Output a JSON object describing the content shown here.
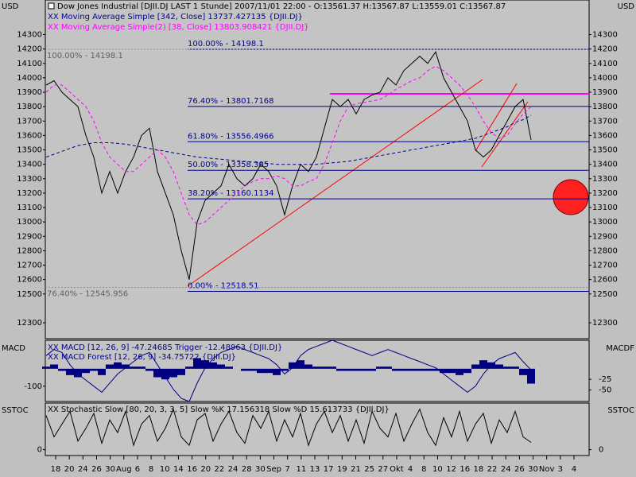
{
  "chart_data": [
    {
      "type": "line",
      "title": "Dow Jones Industrial [DJII.DJ LAST 1 Stunde] 2007/11/01 22:00 - O:13561.37 H:13567.87 L:13559.01 C:13567.87",
      "unit_label": "USD",
      "ylim": [
        12190,
        14540
      ],
      "yticks": [
        12300,
        12500,
        12600,
        12700,
        12800,
        12900,
        13000,
        13100,
        13200,
        13300,
        13400,
        13500,
        13600,
        13700,
        13800,
        13900,
        14000,
        14100,
        14200,
        14300
      ],
      "color": "#000000",
      "values": [
        13950,
        13980,
        13900,
        13850,
        13800,
        13600,
        13450,
        13200,
        13350,
        13200,
        13350,
        13450,
        13600,
        13650,
        13350,
        13200,
        13050,
        12800,
        12600,
        13000,
        13150,
        13200,
        13250,
        13400,
        13300,
        13250,
        13300,
        13400,
        13350,
        13250,
        13050,
        13250,
        13400,
        13350,
        13450,
        13650,
        13850,
        13800,
        13850,
        13750,
        13850,
        13880,
        13900,
        14000,
        13950,
        14050,
        14100,
        14150,
        14100,
        14180,
        14000,
        13900,
        13800,
        13700,
        13500,
        13450,
        13500,
        13600,
        13700,
        13800,
        13850,
        13570
      ],
      "series": [
        {
          "name": "XX Moving Average Simple [342, Close] 13737.427135 {DJII.DJ}",
          "color": "#00008b",
          "style": "dashed",
          "values": [
            13450,
            13470,
            13490,
            13510,
            13530,
            13540,
            13550,
            13550,
            13550,
            13545,
            13540,
            13530,
            13520,
            13510,
            13500,
            13490,
            13480,
            13470,
            13460,
            13450,
            13445,
            13440,
            13435,
            13430,
            13425,
            13420,
            13415,
            13410,
            13405,
            13400,
            13400,
            13400,
            13400,
            13400,
            13400,
            13405,
            13410,
            13415,
            13420,
            13430,
            13440,
            13450,
            13460,
            13470,
            13480,
            13490,
            13500,
            13510,
            13520,
            13530,
            13540,
            13550,
            13560,
            13570,
            13580,
            13600,
            13620,
            13640,
            13660,
            13690,
            13710,
            13740
          ]
        },
        {
          "name": "XX Moving Average Simple(2) [38, Close] 13803.908421 {DJII.DJ}",
          "color": "#ff00ff",
          "style": "dashed",
          "values": [
            13900,
            13950,
            13950,
            13900,
            13850,
            13800,
            13700,
            13550,
            13450,
            13400,
            13350,
            13350,
            13400,
            13450,
            13500,
            13450,
            13350,
            13200,
            13050,
            12980,
            13000,
            13050,
            13100,
            13150,
            13200,
            13250,
            13280,
            13300,
            13300,
            13320,
            13300,
            13250,
            13250,
            13280,
            13300,
            13400,
            13550,
            13700,
            13800,
            13820,
            13830,
            13840,
            13850,
            13880,
            13920,
            13950,
            13980,
            14000,
            14050,
            14080,
            14050,
            14000,
            13950,
            13880,
            13800,
            13700,
            13620,
            13580,
            13600,
            13680,
            13750,
            13800
          ]
        }
      ],
      "fib_levels": [
        {
          "value": 14198.1,
          "label": "100.00% - 14198.1"
        },
        {
          "value": 13801.7168,
          "label": "76.40% - 13801.7168"
        },
        {
          "value": 13556.4966,
          "label": "61.80% - 13556.4966"
        },
        {
          "value": 13358.305,
          "label": "50.00% - 13358.305"
        },
        {
          "value": 13160.1134,
          "label": "38.20% - 13160.1134"
        },
        {
          "value": 12518.51,
          "label": "0.00% - 12518.51"
        }
      ],
      "fib_left_levels": [
        {
          "value": 14198.1,
          "label": "100.00% - 14198.1"
        },
        {
          "value": 12545.956,
          "label": "76.40% - 12545.956"
        }
      ]
    },
    {
      "type": "macd",
      "label": "MACD",
      "label_right": "MACDF",
      "ylim": [
        -150,
        50
      ],
      "yticks": [
        -100
      ],
      "y2lim": [
        -77,
        67
      ],
      "y2ticks": [
        -25,
        -50
      ],
      "series": [
        {
          "name": "XX MACD [12, 26, 9] -47.24685 Trigger -12.48963 {DJII.DJ}",
          "color": "#000080",
          "style": "line",
          "values": [
            0,
            20,
            10,
            -30,
            -60,
            -80,
            -100,
            -120,
            -90,
            -60,
            -40,
            -20,
            0,
            10,
            -30,
            -70,
            -110,
            -140,
            -150,
            -90,
            -40,
            -10,
            10,
            20,
            30,
            20,
            10,
            0,
            -10,
            -30,
            -60,
            -40,
            0,
            20,
            30,
            40,
            50,
            40,
            30,
            20,
            10,
            0,
            10,
            20,
            10,
            0,
            -10,
            -20,
            -30,
            -40,
            -60,
            -80,
            -100,
            -120,
            -100,
            -60,
            -30,
            -10,
            0,
            10,
            -20,
            -47
          ]
        },
        {
          "name": "XX MACD Forest [12, 26, 9] -34.75722 {DJII.DJ}",
          "color": "#000080",
          "style": "bars",
          "axis": "y2",
          "values": [
            5,
            10,
            -5,
            -15,
            -20,
            -10,
            -5,
            -15,
            10,
            15,
            10,
            5,
            5,
            -5,
            -20,
            -25,
            -20,
            -15,
            5,
            25,
            20,
            15,
            10,
            5,
            0,
            -5,
            -5,
            -10,
            -10,
            -15,
            -5,
            15,
            20,
            10,
            5,
            5,
            5,
            -5,
            -5,
            -5,
            -5,
            -5,
            5,
            5,
            -5,
            -5,
            -5,
            -5,
            -5,
            -5,
            -10,
            -10,
            -15,
            -10,
            10,
            20,
            15,
            10,
            5,
            5,
            -15,
            -35
          ]
        }
      ]
    },
    {
      "type": "line",
      "label": "SSTOC",
      "ylim": [
        -12,
        100
      ],
      "yticks": [
        0
      ],
      "y2ticks": [
        0
      ],
      "series": [
        {
          "name": "XX Stochastic Slow [80, 20, 3, 3, 5] Slow %K 17.156318 Slow %D 15.613733 {DJII.DJ}",
          "color": "#000000",
          "style": "line",
          "values": [
            80,
            30,
            60,
            90,
            20,
            50,
            85,
            15,
            70,
            40,
            90,
            10,
            60,
            80,
            20,
            50,
            95,
            30,
            10,
            70,
            85,
            20,
            60,
            90,
            40,
            15,
            80,
            50,
            90,
            20,
            70,
            30,
            85,
            10,
            60,
            90,
            40,
            80,
            20,
            70,
            15,
            90,
            50,
            30,
            85,
            20,
            60,
            95,
            40,
            10,
            75,
            30,
            90,
            20,
            60,
            85,
            15,
            70,
            40,
            90,
            30,
            17
          ]
        }
      ],
      "xlabels": [
        "18",
        "20",
        "24",
        "26",
        "30",
        "Aug",
        "6",
        "8",
        "10",
        "14",
        "16",
        "20",
        "22",
        "24",
        "28",
        "30",
        "Sep",
        "7",
        "11",
        "13",
        "17",
        "19",
        "21",
        "25",
        "27",
        "Okt",
        "4",
        "8",
        "10",
        "12",
        "16",
        "18",
        "22",
        "24",
        "26",
        "30",
        "Nov",
        "3",
        "4"
      ]
    }
  ]
}
